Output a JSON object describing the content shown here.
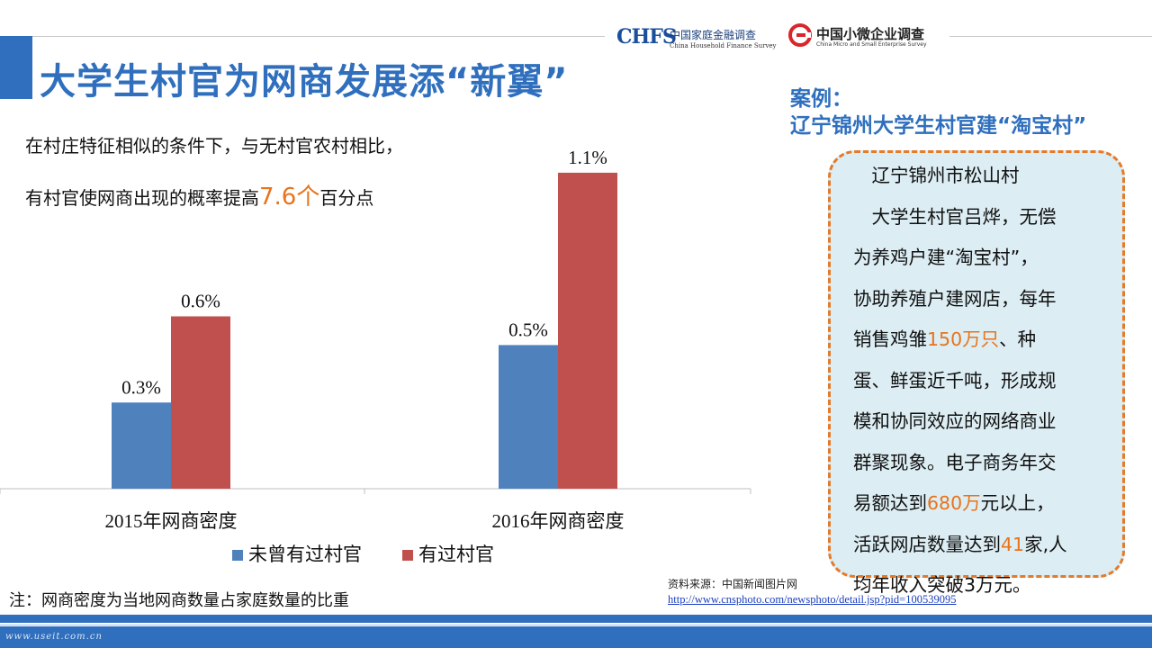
{
  "slide": {
    "title": "大学生村官为网商发展添“新翼”",
    "intro_line1": "在村庄特征相似的条件下，与无村官农村相比，",
    "intro_line2_pre": "有村官使网商出现的概率提高",
    "intro_line2_highlight": "7.6个",
    "intro_line2_post": "百分点",
    "note": "注：网商密度为当地网商数量占家庭数量的比重"
  },
  "logos": {
    "chfs_mark": "CHFS",
    "chfs_cn": "中国家庭金融调查",
    "chfs_en": "China Household Finance Survey",
    "csmes_cn": "中国小微企业调查",
    "csmes_en": "China Micro and Small Enterprise Survey"
  },
  "case": {
    "heading1": "案例：",
    "heading2": "辽宁锦州大学生村官建“淘宝村”",
    "lines": [
      {
        "pre": "　辽宁锦州市松山村",
        "hl": "",
        "post": ""
      },
      {
        "pre": "　大学生村官吕烨，无偿",
        "hl": "",
        "post": ""
      },
      {
        "pre": "为养鸡户建“淘宝村”，",
        "hl": "",
        "post": ""
      },
      {
        "pre": "协助养殖户建网店，每年",
        "hl": "",
        "post": ""
      },
      {
        "pre": "销售鸡雏",
        "hl": "150万只",
        "post": "、种"
      },
      {
        "pre": "蛋、鲜蛋近千吨，形成规",
        "hl": "",
        "post": ""
      },
      {
        "pre": "模和协同效应的网络商业",
        "hl": "",
        "post": ""
      },
      {
        "pre": "群聚现象。电子商务年交",
        "hl": "",
        "post": ""
      },
      {
        "pre": "易额达到",
        "hl": "680万",
        "post": "元以上，"
      },
      {
        "pre": "活跃网店数量达到",
        "hl": "41",
        "post": "家,人"
      },
      {
        "pre": "均年收入突破3万元。",
        "hl": "",
        "post": ""
      }
    ]
  },
  "source": {
    "label": "资料来源：中国新闻图片网",
    "url": "http://www.cnsphoto.com/newsphoto/detail.jsp?pid=100539095"
  },
  "watermark": "www.useit.com.cn",
  "chart_data": {
    "type": "bar",
    "categories": [
      "2015年网商密度",
      "2016年网商密度"
    ],
    "series": [
      {
        "name": "未曾有过村官",
        "values": [
          0.3,
          0.5
        ],
        "labels": [
          "0.3%",
          "0.5%"
        ],
        "color": "#4f81bd"
      },
      {
        "name": "有过村官",
        "values": [
          0.6,
          1.1
        ],
        "labels": [
          "0.6%",
          "1.1%"
        ],
        "color": "#c0504d"
      }
    ],
    "unit": "%",
    "ylim": [
      0,
      1.2
    ],
    "legend": "bottom",
    "grid": false
  },
  "colors": {
    "accent": "#2f6fbd",
    "highlight": "#e8731b",
    "box_bg": "#dcedf3",
    "box_border": "#e57a28"
  }
}
